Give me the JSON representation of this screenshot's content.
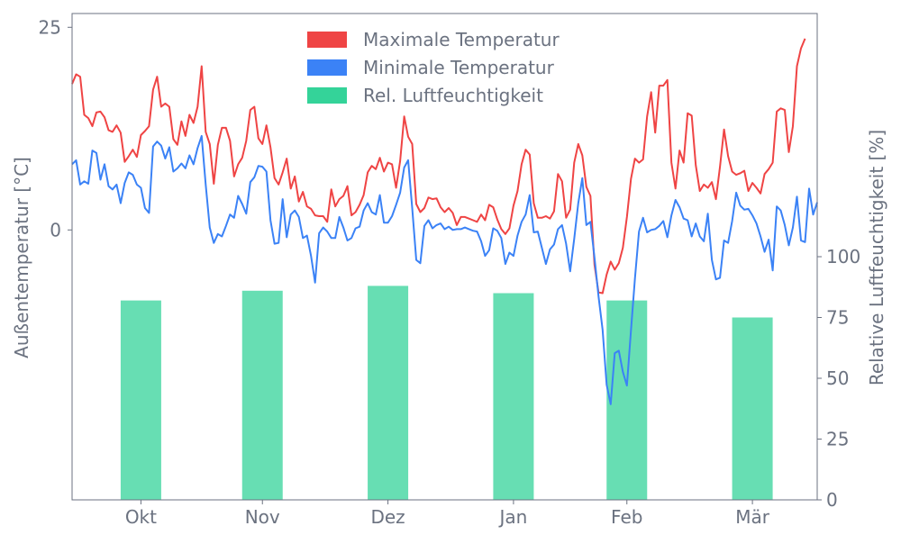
{
  "chart_data": {
    "type": "line",
    "xlabel": "",
    "ylabel_left": "Außentemperatur [°C]",
    "ylabel_right": "Relative Luftfeuchtigkeit [%]",
    "x_ticks": [
      "Okt",
      "Nov",
      "Dez",
      "Jan",
      "Feb",
      "Mär"
    ],
    "y_left_ticks": [
      "0",
      "25"
    ],
    "y_right_ticks": [
      "0",
      "25",
      "50",
      "75",
      "100"
    ],
    "y_left_lim": [
      -33.3,
      26.7
    ],
    "y_right_lim": [
      0,
      200
    ],
    "x_lim": [
      0,
      184
    ],
    "x_tick_positions": [
      17,
      47,
      78,
      109,
      137,
      168
    ],
    "legend": {
      "position": "top-center"
    },
    "colors": {
      "max": "#ef4444",
      "min": "#3b82f6",
      "humidity": "#34d399",
      "axis": "#6b7280"
    },
    "series": [
      {
        "name": "Maximale Temperatur",
        "style": "line",
        "x_start": 0,
        "values": [
          18.0,
          19.2,
          18.9,
          14.2,
          13.8,
          12.8,
          14.5,
          14.6,
          13.9,
          12.3,
          12.1,
          12.9,
          12.0,
          8.4,
          9.1,
          9.9,
          9.0,
          11.7,
          12.2,
          12.8,
          17.3,
          18.9,
          15.2,
          15.6,
          15.2,
          11.2,
          10.5,
          13.4,
          11.6,
          14.2,
          13.2,
          15.2,
          20.2,
          12.1,
          10.6,
          5.7,
          10.5,
          12.6,
          12.6,
          11.0,
          6.6,
          8.1,
          8.9,
          11.0,
          14.8,
          15.2,
          11.3,
          10.6,
          12.9,
          10.2,
          6.4,
          5.6,
          7.1,
          8.8,
          5.1,
          6.6,
          3.5,
          4.7,
          2.9,
          2.6,
          1.8,
          1.7,
          1.7,
          1.0,
          5.0,
          2.9,
          3.8,
          4.2,
          5.4,
          1.8,
          2.2,
          3.1,
          4.3,
          7.1,
          7.9,
          7.5,
          8.9,
          7.2,
          8.3,
          8.1,
          5.2,
          8.5,
          14.0,
          11.5,
          10.6,
          3.2,
          2.2,
          2.7,
          4.0,
          3.8,
          3.9,
          2.8,
          2.2,
          2.7,
          2.1,
          0.6,
          1.6,
          1.6,
          1.4,
          1.2,
          1.0,
          1.9,
          1.2,
          3.1,
          2.8,
          1.3,
          0.1,
          -0.5,
          0.2,
          3.0,
          4.8,
          8.1,
          9.9,
          9.3,
          3.3,
          1.5,
          1.5,
          1.7,
          1.4,
          2.3,
          6.9,
          6.0,
          1.5,
          2.5,
          8.3,
          10.6,
          9.2,
          5.3,
          4.2,
          -4.3,
          -7.7,
          -7.8,
          -5.5,
          -3.9,
          -4.9,
          -4.1,
          -2.2,
          1.6,
          6.3,
          8.8,
          8.3,
          8.7,
          14.0,
          17.0,
          12.0,
          17.8,
          17.8,
          18.5,
          8.3,
          5.1,
          9.8,
          8.3,
          14.4,
          14.1,
          8.0,
          4.8,
          5.6,
          5.2,
          5.9,
          3.8,
          7.8,
          12.4,
          9.1,
          7.2,
          6.8,
          7.0,
          7.3,
          4.8,
          5.8,
          5.2,
          4.5,
          6.9,
          7.5,
          8.3,
          14.6,
          15.0,
          14.8,
          9.6,
          12.8,
          20.2,
          22.4,
          23.6
        ]
      },
      {
        "name": "Minimale Temperatur",
        "style": "line",
        "x_start": 0,
        "values": [
          8.1,
          8.6,
          5.6,
          6.0,
          5.7,
          9.8,
          9.5,
          6.2,
          8.1,
          5.4,
          5.0,
          5.6,
          3.3,
          5.8,
          7.1,
          6.8,
          5.6,
          5.2,
          2.7,
          2.1,
          10.3,
          10.9,
          10.4,
          8.8,
          10.2,
          7.2,
          7.6,
          8.2,
          7.6,
          9.2,
          8.1,
          10.1,
          11.6,
          5.6,
          0.3,
          -1.6,
          -0.5,
          -0.8,
          0.5,
          1.9,
          1.5,
          4.2,
          3.2,
          2.0,
          5.9,
          6.5,
          7.9,
          7.8,
          7.2,
          1.2,
          -1.7,
          -1.6,
          3.8,
          -0.9,
          1.9,
          2.4,
          1.6,
          -1.0,
          -0.7,
          -3.2,
          -6.5,
          -0.4,
          0.3,
          -0.2,
          -1.0,
          -1.0,
          1.6,
          0.3,
          -1.3,
          -1.0,
          0.2,
          0.4,
          2.4,
          3.3,
          2.2,
          1.9,
          4.3,
          0.9,
          0.9,
          1.7,
          3.1,
          4.6,
          7.7,
          8.6,
          2.7,
          -3.7,
          -4.1,
          0.5,
          1.2,
          0.2,
          0.6,
          0.8,
          0.1,
          0.4,
          -0.0,
          0.1,
          0.1,
          0.3,
          0.1,
          -0.1,
          -0.2,
          -1.4,
          -3.2,
          -2.5,
          0.2,
          -0.1,
          -1.0,
          -4.2,
          -2.8,
          -3.2,
          -0.7,
          1.0,
          1.9,
          4.3,
          -0.3,
          -0.2,
          -2.2,
          -4.2,
          -2.4,
          -1.8,
          0.1,
          0.6,
          -1.7,
          -5.1,
          -1.1,
          3.3,
          6.4,
          0.6,
          1.0,
          -3.4,
          -8.2,
          -12.3,
          -19.1,
          -21.5,
          -15.2,
          -14.9,
          -17.5,
          -19.2,
          -12.4,
          -6.0,
          -0.2,
          1.5,
          -0.3,
          -0.0,
          0.1,
          0.5,
          1.1,
          -0.9,
          1.8,
          3.7,
          2.8,
          1.4,
          1.2,
          -0.8,
          0.8,
          -0.8,
          -1.4,
          2.0,
          -3.7,
          -6.1,
          -5.9,
          -1.3,
          -1.6,
          1.1,
          4.6,
          3.0,
          2.5,
          2.6,
          1.8,
          0.8,
          -0.8,
          -2.7,
          -1.2,
          -5.0,
          2.9,
          2.4,
          0.6,
          -1.9,
          0.3,
          4.1,
          -1.3,
          -1.5,
          5.1,
          1.9,
          3.4
        ]
      },
      {
        "name": "Rel. Luftfeuchtigkeit",
        "style": "bar",
        "x": [
          17,
          47,
          78,
          109,
          137,
          168
        ],
        "values": [
          82,
          86,
          88,
          85,
          82,
          75
        ]
      }
    ]
  }
}
